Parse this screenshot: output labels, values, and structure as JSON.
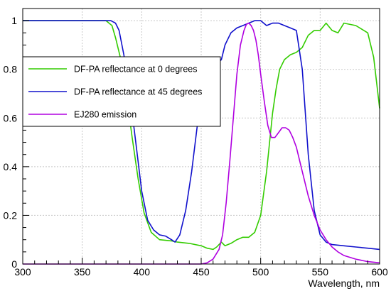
{
  "chart_data": {
    "type": "line",
    "xlabel": "Wavelength, nm",
    "ylabel": "",
    "title": "",
    "xlim": [
      300,
      600
    ],
    "ylim": [
      0,
      1.05
    ],
    "xticks": [
      300,
      350,
      400,
      450,
      500,
      550,
      600
    ],
    "xtick_labels": [
      "300",
      "350",
      "400",
      "450",
      "500",
      "550",
      "600"
    ],
    "yticks": [
      0,
      0.2,
      0.4,
      0.6,
      0.8,
      1
    ],
    "ytick_labels": [
      "0",
      "0.2",
      "0.4",
      "0.6",
      "0.8",
      "1"
    ],
    "grid": true,
    "legend_position": "top-left",
    "series": [
      {
        "name": "DF-PA reflectance at 0 degrees",
        "color": "#33cc00",
        "x": [
          300,
          350,
          370,
          375,
          378,
          382,
          387,
          392,
          397,
          402,
          408,
          415,
          425,
          430,
          440,
          450,
          455,
          460,
          463,
          467,
          470,
          475,
          480,
          485,
          490,
          495,
          500,
          505,
          510,
          513,
          516,
          520,
          525,
          530,
          535,
          540,
          545,
          550,
          555,
          560,
          565,
          570,
          580,
          590,
          595,
          600
        ],
        "y": [
          1.0,
          1.0,
          1.0,
          0.98,
          0.93,
          0.85,
          0.7,
          0.52,
          0.35,
          0.21,
          0.13,
          0.1,
          0.095,
          0.09,
          0.085,
          0.075,
          0.065,
          0.06,
          0.07,
          0.09,
          0.075,
          0.085,
          0.1,
          0.11,
          0.11,
          0.13,
          0.2,
          0.38,
          0.62,
          0.72,
          0.8,
          0.84,
          0.86,
          0.87,
          0.89,
          0.94,
          0.96,
          0.96,
          0.99,
          0.96,
          0.95,
          0.99,
          0.98,
          0.95,
          0.85,
          0.64
        ]
      },
      {
        "name": "DF-PA reflectance at 45 degrees",
        "color": "#1010cc",
        "x": [
          300,
          360,
          374,
          378,
          381,
          385,
          390,
          395,
          400,
          405,
          410,
          415,
          420,
          425,
          428,
          432,
          437,
          442,
          447,
          452,
          455,
          460,
          463,
          467,
          470,
          475,
          480,
          485,
          490,
          495,
          500,
          505,
          510,
          515,
          520,
          525,
          530,
          535,
          540,
          545,
          550,
          555,
          560,
          570,
          580,
          590,
          600
        ],
        "y": [
          1.0,
          1.0,
          1.0,
          0.99,
          0.96,
          0.86,
          0.7,
          0.5,
          0.3,
          0.18,
          0.14,
          0.12,
          0.115,
          0.1,
          0.09,
          0.12,
          0.22,
          0.38,
          0.58,
          0.7,
          0.77,
          0.79,
          0.82,
          0.84,
          0.9,
          0.95,
          0.97,
          0.98,
          0.99,
          1.0,
          1.0,
          0.98,
          0.99,
          0.99,
          0.98,
          0.97,
          0.96,
          0.8,
          0.45,
          0.22,
          0.12,
          0.09,
          0.08,
          0.075,
          0.07,
          0.065,
          0.06
        ]
      },
      {
        "name": "EJ280 emission",
        "color": "#b000e0",
        "x": [
          300,
          320,
          330,
          450,
          455,
          460,
          465,
          468,
          471,
          474,
          477,
          480,
          483,
          486,
          488,
          490,
          492,
          494,
          496,
          498,
          500,
          503,
          506,
          509,
          512,
          515,
          518,
          521,
          524,
          527,
          530,
          535,
          540,
          545,
          550,
          555,
          560,
          565,
          570,
          580,
          590,
          600
        ],
        "y": [
          0.0,
          0.0,
          0.0,
          0.0,
          0.005,
          0.02,
          0.06,
          0.12,
          0.25,
          0.42,
          0.6,
          0.78,
          0.9,
          0.96,
          0.985,
          0.99,
          0.98,
          0.96,
          0.92,
          0.86,
          0.78,
          0.67,
          0.57,
          0.52,
          0.52,
          0.54,
          0.56,
          0.56,
          0.55,
          0.52,
          0.48,
          0.38,
          0.28,
          0.2,
          0.14,
          0.1,
          0.07,
          0.05,
          0.035,
          0.02,
          0.01,
          0.005
        ]
      }
    ]
  }
}
